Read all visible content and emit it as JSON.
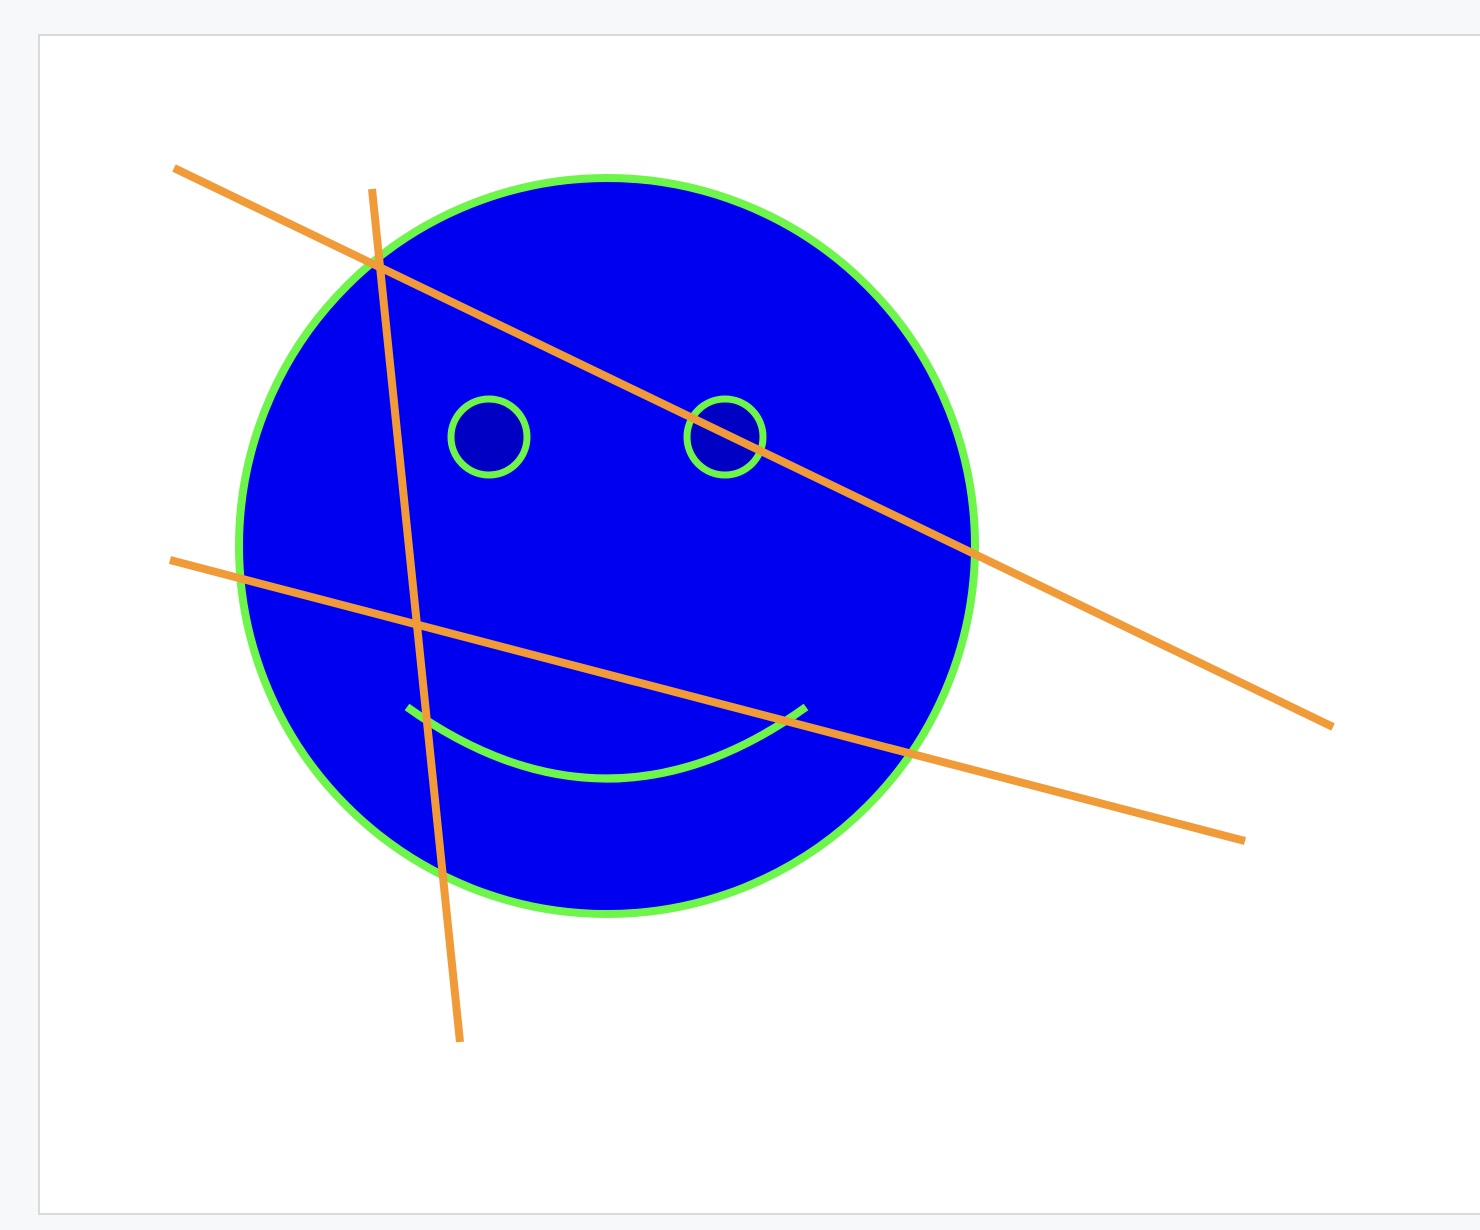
{
  "canvas": {
    "background_color": "#ffffff",
    "border_color": "#d9dadc",
    "page_background_color": "#f7f8fa"
  },
  "smiley": {
    "face_fill_color": "#0000f0",
    "outline_color": "#6ef54a",
    "eye_fill_color": "#0000c4",
    "mouth_color": "#6ef54a"
  },
  "strokes": {
    "color": "#f19a38",
    "count": 3
  }
}
